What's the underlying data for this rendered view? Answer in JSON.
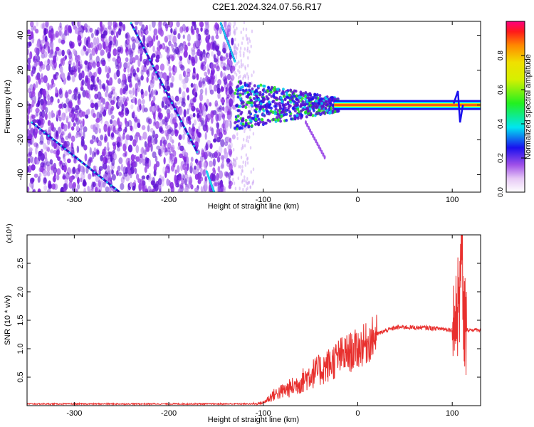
{
  "title": "C2E1.2024.324.07.56.R17",
  "chart_data": [
    {
      "type": "heatmap",
      "xlabel": "Height of straight line (km)",
      "ylabel": "Frequency (Hz)",
      "xlim": [
        -350,
        130
      ],
      "ylim": [
        -50,
        48
      ],
      "xticks": [
        -300,
        -200,
        -100,
        0,
        100
      ],
      "yticks": [
        -40,
        -20,
        0,
        20,
        40
      ],
      "colorbar": {
        "label": "Normalized spectral amplitude",
        "range": [
          0,
          1
        ],
        "ticks": [
          "0.0",
          "0.2",
          "0.4",
          "0.6",
          "0.8"
        ]
      },
      "features": {
        "noise_region_x": [
          -350,
          -130
        ],
        "diagonal_tracks": [
          {
            "x": [
              -345,
              -252
            ],
            "y": [
              -10,
              -50
            ]
          },
          {
            "x": [
              -240,
              -170
            ],
            "y": [
              47,
              -27
            ]
          },
          {
            "x": [
              -145,
              -130
            ],
            "y": [
              47,
              25
            ]
          },
          {
            "x": [
              -160,
              -152
            ],
            "y": [
              -38,
              -50
            ]
          }
        ],
        "main_tone_y": 0,
        "main_tone_x": [
          -130,
          130
        ],
        "secondary_tone": {
          "x": [
            -55,
            -35
          ],
          "y": [
            -10,
            -30
          ]
        },
        "spike_x": 106
      }
    },
    {
      "type": "line",
      "xlabel": "Height of straight line (km)",
      "ylabel": "SNR (10 * v/v)",
      "multiplier": "(x10⁴)",
      "xlim": [
        -350,
        130
      ],
      "ylim": [
        0,
        3
      ],
      "xticks": [
        -300,
        -200,
        -100,
        0,
        100
      ],
      "yticks": [
        0.5,
        1.0,
        1.5,
        2.0,
        2.5
      ],
      "color": "#e8302e",
      "envelope": {
        "x": [
          -350,
          -110,
          -100,
          -90,
          -80,
          -70,
          -60,
          -50,
          -40,
          -30,
          -20,
          -10,
          0,
          10,
          20,
          30,
          40,
          50,
          60,
          70,
          80,
          90,
          100,
          104,
          106,
          108,
          110,
          112,
          115,
          120,
          130
        ],
        "y": [
          0.03,
          0.03,
          0.05,
          0.18,
          0.25,
          0.32,
          0.42,
          0.55,
          0.62,
          0.72,
          0.85,
          0.92,
          1.0,
          1.1,
          1.25,
          1.32,
          1.37,
          1.38,
          1.37,
          1.37,
          1.36,
          1.35,
          1.33,
          1.4,
          1.75,
          2.05,
          2.95,
          1.55,
          1.33,
          1.33,
          1.33
        ]
      }
    }
  ]
}
